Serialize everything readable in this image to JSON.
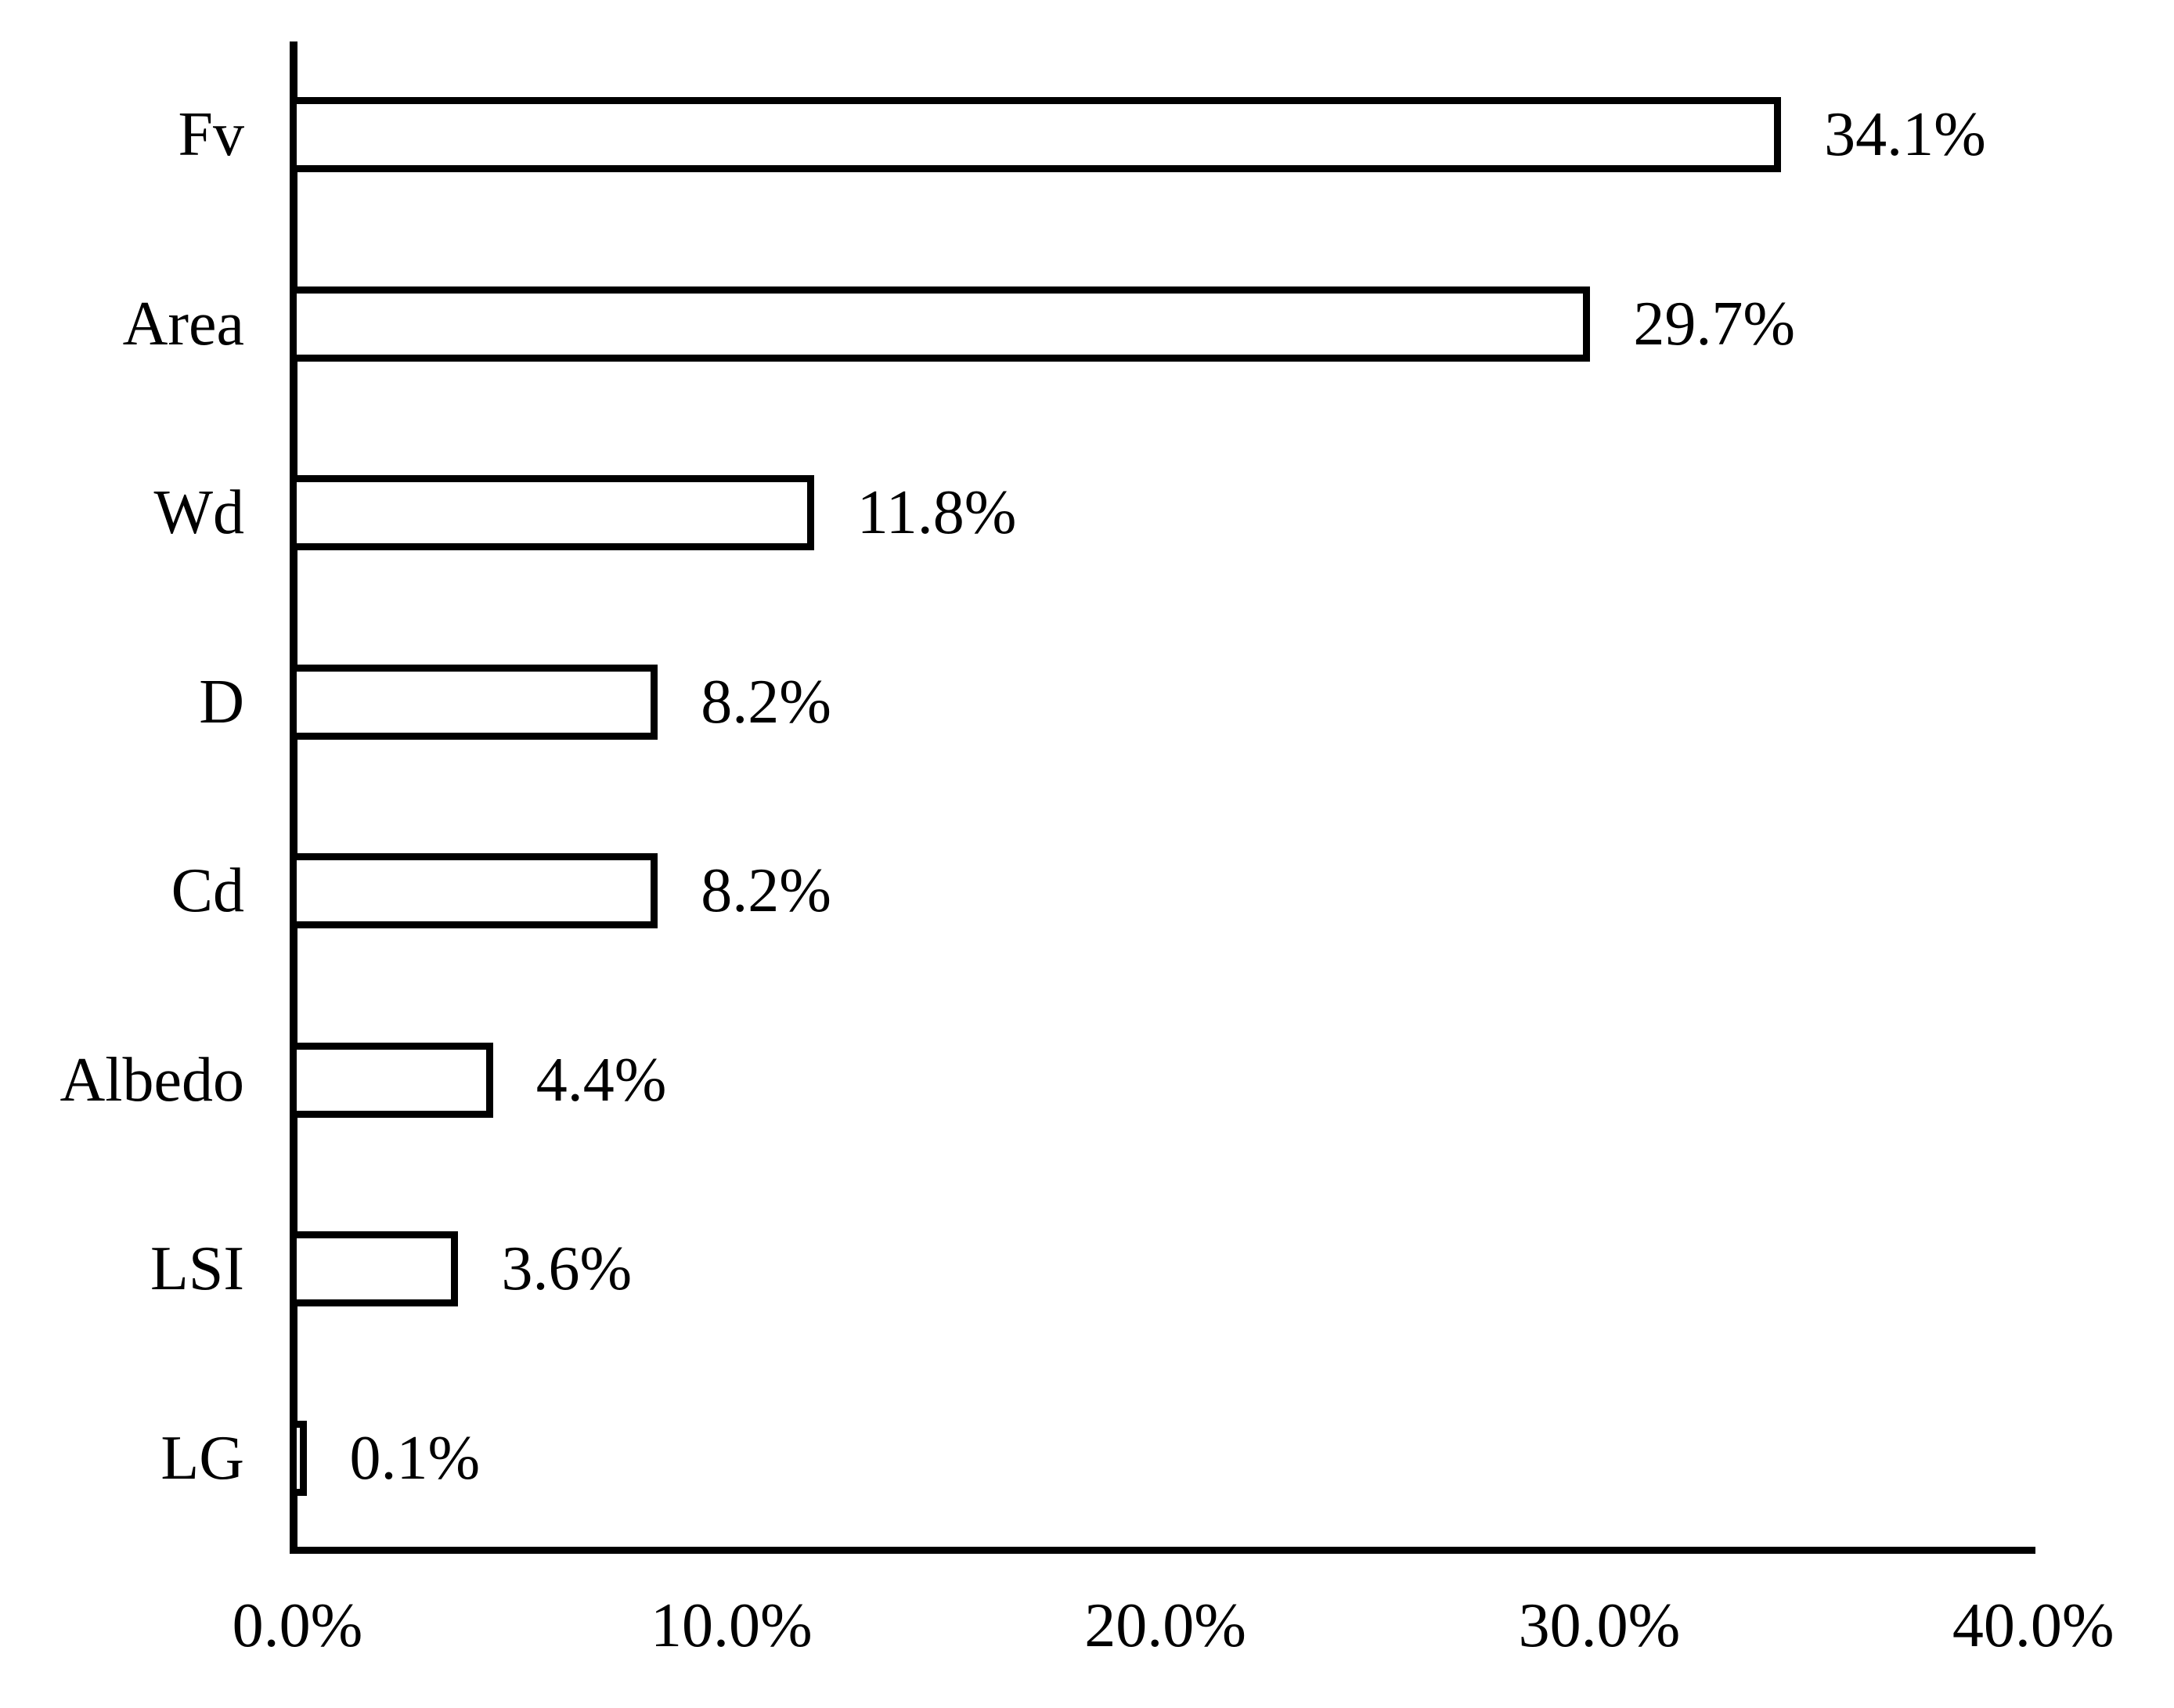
{
  "chart_data": {
    "type": "bar",
    "orientation": "horizontal",
    "categories": [
      "Fv",
      "Area",
      "Wd",
      "D",
      "Cd",
      "Albedo",
      "LSI",
      "LG"
    ],
    "values": [
      34.1,
      29.7,
      11.8,
      8.2,
      8.2,
      4.4,
      3.6,
      0.1
    ],
    "value_labels": [
      "34.1%",
      "29.7%",
      "11.8%",
      "8.2%",
      "8.2%",
      "4.4%",
      "3.6%",
      "0.1%"
    ],
    "x_tick_labels": [
      "0.0%",
      "10.0%",
      "20.0%",
      "30.0%",
      "40.0%"
    ],
    "xlim": [
      0,
      40
    ],
    "title": "",
    "xlabel": "",
    "ylabel": "",
    "grid": "off",
    "legend": "none",
    "colors": {
      "background": "#ffffff",
      "bar_fill": "#ffffff",
      "bar_border": "#000000",
      "axis": "#000000",
      "text": "#000000"
    }
  }
}
